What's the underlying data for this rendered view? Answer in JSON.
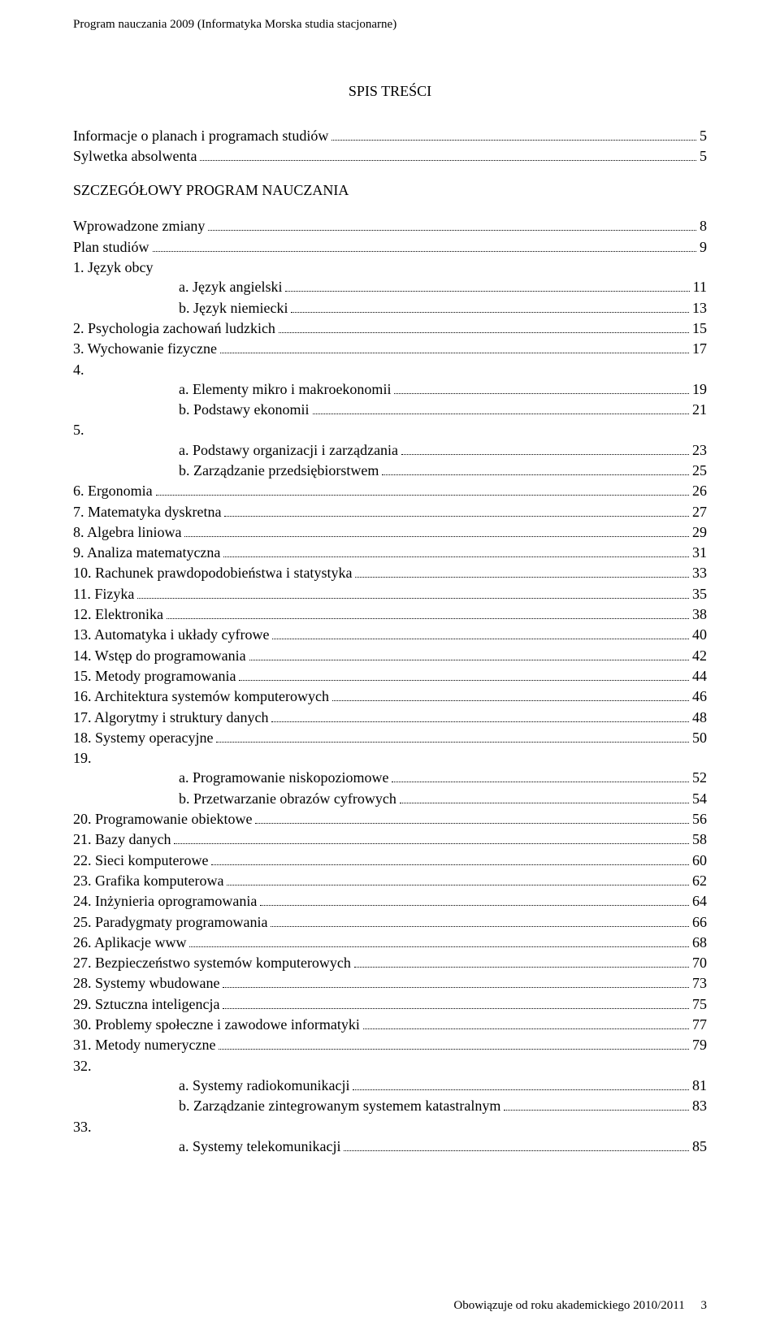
{
  "header": "Program nauczania 2009 (Informatyka Morska studia stacjonarne)",
  "title": "SPIS TREŚCI",
  "section_title": "SZCZEGÓŁOWY PROGRAM NAUCZANIA",
  "footer": {
    "text": "Obowiązuje od roku akademickiego 2010/2011",
    "page": "3"
  },
  "intro": [
    {
      "label": "Informacje o planach i programach studiów",
      "page": "5",
      "indent": 0
    },
    {
      "label": "Sylwetka absolwenta",
      "page": "5",
      "indent": 0
    }
  ],
  "toc": [
    {
      "label": "Wprowadzone zmiany",
      "page": "8",
      "indent": 0
    },
    {
      "label": "Plan studiów",
      "page": "9",
      "indent": 0
    },
    {
      "label": "1. Język obcy",
      "nopage": true,
      "indent": 0
    },
    {
      "label": "a. Język angielski",
      "page": "11",
      "indent": 1
    },
    {
      "label": "b. Język niemiecki",
      "page": "13",
      "indent": 1
    },
    {
      "label": "2. Psychologia zachowań ludzkich",
      "page": "15",
      "indent": 0
    },
    {
      "label": "3. Wychowanie fizyczne",
      "page": "17",
      "indent": 0
    },
    {
      "label": "4.",
      "nopage": true,
      "indent": 0
    },
    {
      "label": "a. Elementy mikro i makroekonomii",
      "page": "19",
      "indent": 1
    },
    {
      "label": "b. Podstawy ekonomii",
      "page": "21",
      "indent": 1
    },
    {
      "label": "5.",
      "nopage": true,
      "indent": 0
    },
    {
      "label": "a. Podstawy organizacji i zarządzania",
      "page": "23",
      "indent": 1
    },
    {
      "label": "b. Zarządzanie przedsiębiorstwem",
      "page": "25",
      "indent": 1
    },
    {
      "label": "6. Ergonomia",
      "page": "26",
      "indent": 0
    },
    {
      "label": "7. Matematyka dyskretna",
      "page": "27",
      "indent": 0
    },
    {
      "label": "8. Algebra liniowa",
      "page": "29",
      "indent": 0
    },
    {
      "label": "9. Analiza matematyczna",
      "page": "31",
      "indent": 0
    },
    {
      "label": "10. Rachunek prawdopodobieństwa i statystyka",
      "page": "33",
      "indent": 0
    },
    {
      "label": "11. Fizyka",
      "page": "35",
      "indent": 0
    },
    {
      "label": "12. Elektronika",
      "page": "38",
      "indent": 0
    },
    {
      "label": "13. Automatyka i układy cyfrowe",
      "page": "40",
      "indent": 0
    },
    {
      "label": "14. Wstęp do programowania",
      "page": "42",
      "indent": 0
    },
    {
      "label": "15. Metody programowania",
      "page": "44",
      "indent": 0
    },
    {
      "label": "16. Architektura systemów komputerowych",
      "page": "46",
      "indent": 0
    },
    {
      "label": "17. Algorytmy i struktury danych",
      "page": "48",
      "indent": 0
    },
    {
      "label": "18. Systemy operacyjne",
      "page": "50",
      "indent": 0
    },
    {
      "label": "19.",
      "nopage": true,
      "indent": 0
    },
    {
      "label": "a. Programowanie niskopoziomowe",
      "page": "52",
      "indent": 1
    },
    {
      "label": "b. Przetwarzanie obrazów cyfrowych",
      "page": "54",
      "indent": 1
    },
    {
      "label": "20. Programowanie obiektowe",
      "page": "56",
      "indent": 0
    },
    {
      "label": "21. Bazy danych",
      "page": "58",
      "indent": 0
    },
    {
      "label": "22. Sieci komputerowe",
      "page": "60",
      "indent": 0
    },
    {
      "label": "23. Grafika komputerowa",
      "page": "62",
      "indent": 0
    },
    {
      "label": "24. Inżynieria oprogramowania",
      "page": "64",
      "indent": 0
    },
    {
      "label": "25. Paradygmaty programowania",
      "page": "66",
      "indent": 0
    },
    {
      "label": "26. Aplikacje www",
      "page": "68",
      "indent": 0
    },
    {
      "label": "27. Bezpieczeństwo systemów komputerowych",
      "page": "70",
      "indent": 0
    },
    {
      "label": "28. Systemy wbudowane",
      "page": "73",
      "indent": 0
    },
    {
      "label": "29. Sztuczna inteligencja",
      "page": "75",
      "indent": 0
    },
    {
      "label": "30. Problemy społeczne i zawodowe informatyki",
      "page": "77",
      "indent": 0
    },
    {
      "label": "31. Metody numeryczne",
      "page": "79",
      "indent": 0
    },
    {
      "label": "32.",
      "nopage": true,
      "indent": 0
    },
    {
      "label": "a. Systemy radiokomunikacji",
      "page": "81",
      "indent": 1
    },
    {
      "label": "b. Zarządzanie zintegrowanym systemem katastralnym",
      "page": "83",
      "indent": 1
    },
    {
      "label": "33.",
      "nopage": true,
      "indent": 0
    },
    {
      "label": "a. Systemy telekomunikacji",
      "page": "85",
      "indent": 1
    }
  ]
}
